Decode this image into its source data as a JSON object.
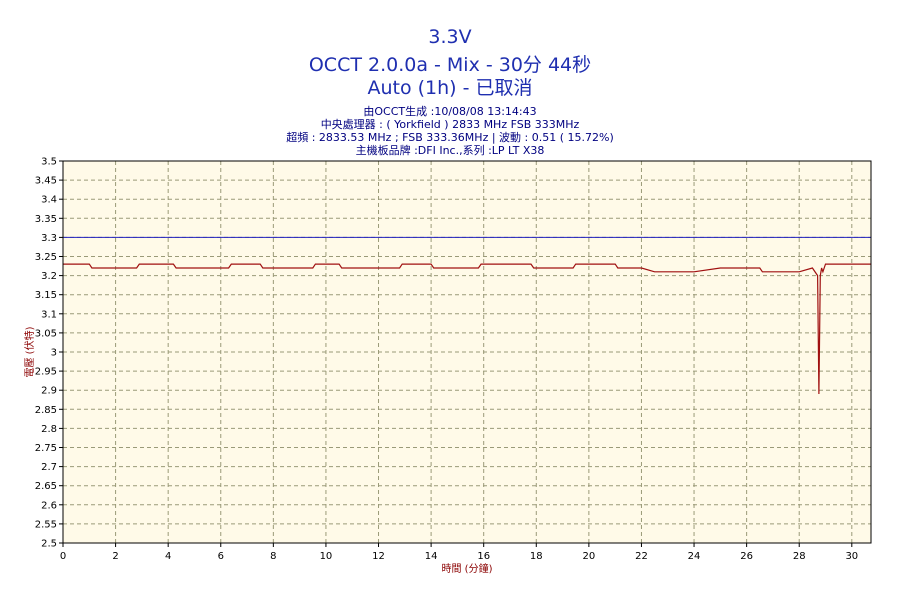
{
  "header": {
    "title_line1": "3.3V",
    "title_line2": "OCCT 2.0.0a - Mix - 30分 44秒",
    "title_line3": "Auto (1h) - 已取消",
    "info_line1": "由OCCT生成 :10/08/08 13:14:43",
    "info_line2": "中央處理器 : ( Yorkfield ) 2833 MHz FSB 333MHz",
    "info_line3": "超頻 : 2833.53 MHz ; FSB 333.36MHz | 波動 : 0.51 ( 15.72%)",
    "info_line4": "主機板品牌 :DFI Inc.,系列 :LP LT X38"
  },
  "colors": {
    "title": "#1f2fb0",
    "plot_background": "#fffae8",
    "grid": "#9a9a78",
    "series": "#a01010",
    "reference_line": "#2020c0",
    "axis_label": "#8b0000"
  },
  "chart_data": {
    "type": "line",
    "xlabel": "時間 (分鐘)",
    "ylabel": "電壓 (伏特)",
    "xlim": [
      0,
      30.73
    ],
    "ylim": [
      2.5,
      3.5
    ],
    "x_ticks": [
      0,
      2,
      4,
      6,
      8,
      10,
      12,
      14,
      16,
      18,
      20,
      22,
      24,
      26,
      28,
      30
    ],
    "x_tick_labels": [
      "0",
      "2",
      "4",
      "6",
      "8",
      "10",
      "12",
      "14",
      "16",
      "18",
      "20",
      "22",
      "24",
      "26",
      "28",
      "30"
    ],
    "y_ticks": [
      2.5,
      2.55,
      2.6,
      2.65,
      2.7,
      2.75,
      2.8,
      2.85,
      2.9,
      2.95,
      3,
      3.05,
      3.1,
      3.15,
      3.2,
      3.25,
      3.3,
      3.35,
      3.4,
      3.45,
      3.5
    ],
    "y_tick_labels": [
      "2.5",
      "2.55",
      "2.6",
      "2.65",
      "2.7",
      "2.75",
      "2.8",
      "2.85",
      "2.9",
      "2.95",
      "3",
      "3.05",
      "3.1",
      "3.15",
      "3.2",
      "3.25",
      "3.3",
      "3.35",
      "3.4",
      "3.45",
      "3.5"
    ],
    "grid": true,
    "reference_line": {
      "y": 3.3
    },
    "series": [
      {
        "x": [
          0,
          1.0,
          1.1,
          2.8,
          2.9,
          4.2,
          4.3,
          6.3,
          6.4,
          7.5,
          7.6,
          9.5,
          9.6,
          10.5,
          10.6,
          12.8,
          12.9,
          14.0,
          14.1,
          15.8,
          15.9,
          17.8,
          17.9,
          19.4,
          19.5,
          21.0,
          21.1,
          22.0,
          22.5,
          24.0,
          25.0,
          26.5,
          26.6,
          27.5,
          28.0,
          28.5,
          28.7,
          28.75,
          28.8,
          28.85,
          28.9,
          29.0,
          29.5,
          30.0,
          30.73
        ],
        "y": [
          3.23,
          3.23,
          3.22,
          3.22,
          3.23,
          3.23,
          3.22,
          3.22,
          3.23,
          3.23,
          3.22,
          3.22,
          3.23,
          3.23,
          3.22,
          3.22,
          3.23,
          3.23,
          3.22,
          3.22,
          3.23,
          3.23,
          3.22,
          3.22,
          3.23,
          3.23,
          3.22,
          3.22,
          3.21,
          3.21,
          3.22,
          3.22,
          3.21,
          3.21,
          3.21,
          3.22,
          3.2,
          2.89,
          3.2,
          3.22,
          3.21,
          3.23,
          3.23,
          3.23,
          3.23
        ]
      }
    ]
  }
}
